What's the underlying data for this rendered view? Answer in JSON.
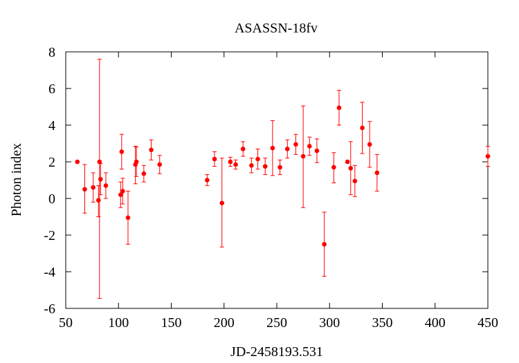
{
  "chart_data": {
    "type": "scatter",
    "title": "ASASSN-18fv",
    "xlabel": "JD-2458193.531",
    "ylabel": "Photon index",
    "xlim": [
      50,
      450
    ],
    "ylim": [
      -6,
      8
    ],
    "x_ticks": [
      50,
      100,
      150,
      200,
      250,
      300,
      350,
      400,
      450
    ],
    "y_ticks": [
      -6,
      -4,
      -2,
      0,
      2,
      4,
      6,
      8
    ],
    "x_tick_labels": [
      "50",
      "100",
      "150",
      "200",
      "250",
      "300",
      "350",
      "400",
      "450"
    ],
    "y_tick_labels": [
      "-6",
      "-4",
      "-2",
      "0",
      "2",
      "4",
      "6",
      "8"
    ],
    "grid": false,
    "marker_color": "#ff0000",
    "points": [
      {
        "x": 61,
        "y": 2.0,
        "ylo": 2.0,
        "yhi": 2.0
      },
      {
        "x": 68,
        "y": 0.5,
        "ylo": -0.8,
        "yhi": 1.85
      },
      {
        "x": 76,
        "y": 0.6,
        "ylo": -0.2,
        "yhi": 1.4
      },
      {
        "x": 81,
        "y": -0.1,
        "ylo": -1.0,
        "yhi": 0.7
      },
      {
        "x": 82,
        "y": 2.0,
        "ylo": -5.45,
        "yhi": 7.6
      },
      {
        "x": 83,
        "y": 1.05,
        "ylo": 0.2,
        "yhi": 1.9
      },
      {
        "x": 88,
        "y": 0.7,
        "ylo": 0.0,
        "yhi": 1.4
      },
      {
        "x": 102,
        "y": 0.2,
        "ylo": -0.5,
        "yhi": 0.9
      },
      {
        "x": 103,
        "y": 2.55,
        "ylo": 1.6,
        "yhi": 3.5
      },
      {
        "x": 104,
        "y": 0.4,
        "ylo": -0.3,
        "yhi": 1.1
      },
      {
        "x": 109,
        "y": -1.05,
        "ylo": -2.5,
        "yhi": 0.4
      },
      {
        "x": 116,
        "y": 1.85,
        "ylo": 0.8,
        "yhi": 2.85
      },
      {
        "x": 117,
        "y": 2.0,
        "ylo": 1.2,
        "yhi": 2.8
      },
      {
        "x": 124,
        "y": 1.35,
        "ylo": 0.9,
        "yhi": 1.8
      },
      {
        "x": 131,
        "y": 2.65,
        "ylo": 2.1,
        "yhi": 3.2
      },
      {
        "x": 139,
        "y": 1.85,
        "ylo": 1.35,
        "yhi": 2.35
      },
      {
        "x": 184,
        "y": 1.0,
        "ylo": 0.7,
        "yhi": 1.3
      },
      {
        "x": 191,
        "y": 2.15,
        "ylo": 1.75,
        "yhi": 2.55
      },
      {
        "x": 198,
        "y": -0.25,
        "ylo": -2.65,
        "yhi": 2.2
      },
      {
        "x": 206,
        "y": 2.0,
        "ylo": 1.75,
        "yhi": 2.25
      },
      {
        "x": 211,
        "y": 1.85,
        "ylo": 1.6,
        "yhi": 2.1
      },
      {
        "x": 218,
        "y": 2.7,
        "ylo": 2.3,
        "yhi": 3.1
      },
      {
        "x": 226,
        "y": 1.8,
        "ylo": 1.4,
        "yhi": 2.2
      },
      {
        "x": 232,
        "y": 2.15,
        "ylo": 1.6,
        "yhi": 2.7
      },
      {
        "x": 239,
        "y": 1.75,
        "ylo": 1.3,
        "yhi": 2.2
      },
      {
        "x": 246,
        "y": 2.75,
        "ylo": 1.25,
        "yhi": 4.25
      },
      {
        "x": 253,
        "y": 1.7,
        "ylo": 1.3,
        "yhi": 2.1
      },
      {
        "x": 260,
        "y": 2.7,
        "ylo": 2.2,
        "yhi": 3.2
      },
      {
        "x": 268,
        "y": 2.95,
        "ylo": 2.4,
        "yhi": 3.5
      },
      {
        "x": 275,
        "y": 2.3,
        "ylo": -0.5,
        "yhi": 5.05
      },
      {
        "x": 281,
        "y": 2.85,
        "ylo": 2.35,
        "yhi": 3.35
      },
      {
        "x": 288,
        "y": 2.6,
        "ylo": 1.95,
        "yhi": 3.25
      },
      {
        "x": 295,
        "y": -2.5,
        "ylo": -4.25,
        "yhi": -0.75
      },
      {
        "x": 304,
        "y": 1.7,
        "ylo": 0.85,
        "yhi": 2.5
      },
      {
        "x": 309,
        "y": 4.95,
        "ylo": 4.0,
        "yhi": 5.9
      },
      {
        "x": 317,
        "y": 2.0,
        "ylo": 2.0,
        "yhi": 2.0
      },
      {
        "x": 320,
        "y": 1.65,
        "ylo": 0.2,
        "yhi": 3.1
      },
      {
        "x": 324,
        "y": 0.95,
        "ylo": 0.1,
        "yhi": 1.8
      },
      {
        "x": 331,
        "y": 3.85,
        "ylo": 2.45,
        "yhi": 5.25
      },
      {
        "x": 338,
        "y": 2.95,
        "ylo": 1.7,
        "yhi": 4.2
      },
      {
        "x": 345,
        "y": 1.4,
        "ylo": 0.4,
        "yhi": 2.4
      },
      {
        "x": 450,
        "y": 2.3,
        "ylo": 1.75,
        "yhi": 2.85
      }
    ]
  }
}
